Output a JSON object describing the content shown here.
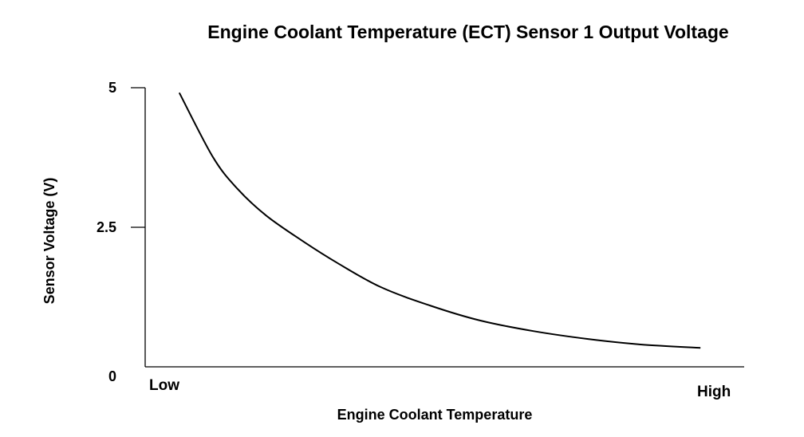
{
  "chart_data": {
    "type": "line",
    "title": "Engine Coolant Temperature (ECT) Sensor 1 Output Voltage",
    "xlabel": "Engine Coolant Temperature",
    "ylabel": "Sensor Voltage (V)",
    "xlim": [
      0,
      1
    ],
    "ylim": [
      0,
      5
    ],
    "x_tick_labels": [
      {
        "value": 0,
        "label": "Low"
      },
      {
        "value": 1,
        "label": "High"
      }
    ],
    "y_ticks": [
      {
        "value": 5,
        "label": "5"
      },
      {
        "value": 2.5,
        "label": "2.5"
      },
      {
        "value": 0,
        "label": "0"
      }
    ],
    "grid": false,
    "series": [
      {
        "name": "ECT Sensor 1 Output Voltage",
        "color": "#000000",
        "x": [
          0.057,
          0.113,
          0.154,
          0.202,
          0.262,
          0.321,
          0.393,
          0.475,
          0.559,
          0.648,
          0.738,
          0.827,
          0.927
        ],
        "y": [
          4.91,
          3.76,
          3.19,
          2.71,
          2.26,
          1.86,
          1.43,
          1.1,
          0.83,
          0.64,
          0.5,
          0.4,
          0.34
        ]
      }
    ]
  }
}
